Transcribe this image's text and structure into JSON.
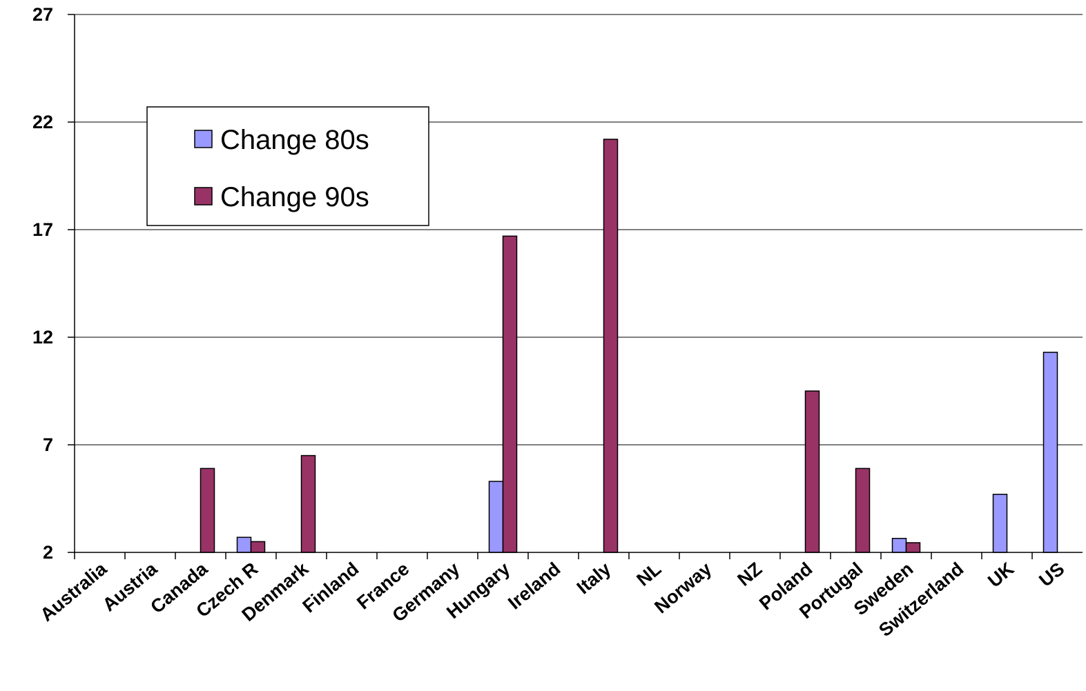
{
  "chart_data": {
    "type": "bar",
    "categories": [
      "Australia",
      "Austria",
      "Canada",
      "Czech R",
      "Denmark",
      "Finland",
      "France",
      "Germany",
      "Hungary",
      "Ireland",
      "Italy",
      "NL",
      "Norway",
      "NZ",
      "Poland",
      "Portugal",
      "Sweden",
      "Switzerland",
      "UK",
      "US"
    ],
    "series": [
      {
        "name": "Change 80s",
        "color": "#9999ff",
        "values": [
          null,
          null,
          null,
          2.7,
          null,
          null,
          null,
          null,
          5.3,
          null,
          null,
          null,
          null,
          null,
          null,
          null,
          2.65,
          null,
          4.7,
          11.3
        ]
      },
      {
        "name": "Change 90s",
        "color": "#993366",
        "values": [
          null,
          null,
          5.9,
          2.5,
          6.5,
          null,
          null,
          null,
          16.7,
          null,
          21.2,
          null,
          null,
          null,
          9.5,
          5.9,
          2.45,
          null,
          null,
          null
        ]
      }
    ],
    "ylim": [
      2,
      27
    ],
    "yticks": [
      "2",
      "7",
      "12",
      "17",
      "22",
      "27"
    ],
    "grid": true,
    "legend_position": "upper-left"
  }
}
